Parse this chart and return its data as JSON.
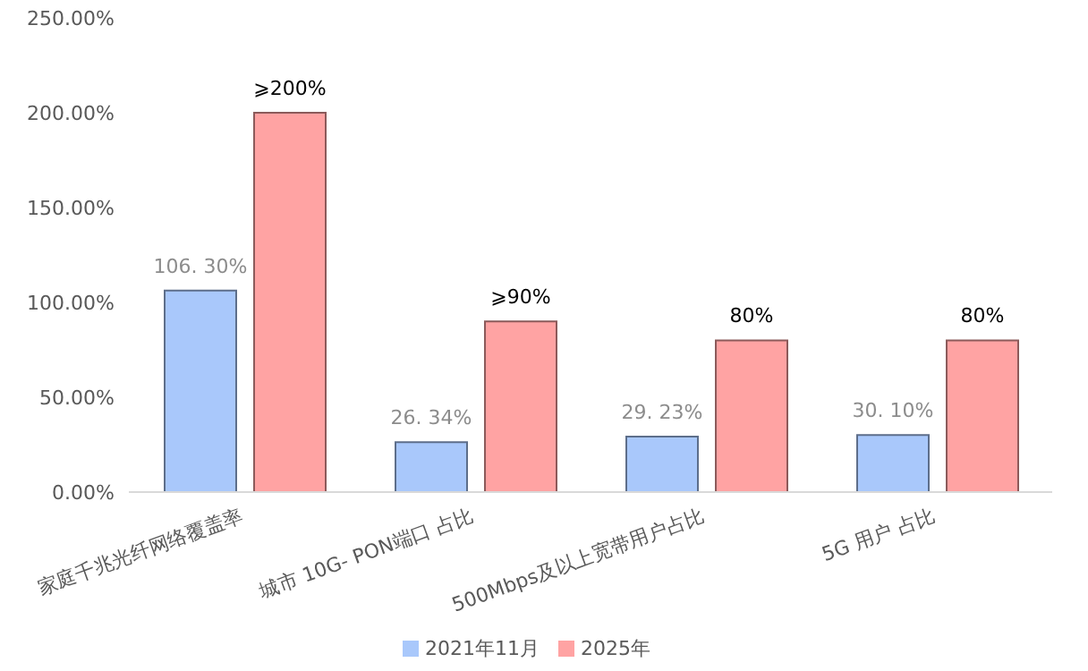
{
  "chart_data": {
    "type": "bar",
    "categories": [
      "家庭千兆光纤网络覆盖率",
      "城市 10G- PON端口 占比",
      "500Mbps及以上宽带用户占比",
      "5G 用户 占比"
    ],
    "series": [
      {
        "name": "2021年11月",
        "color": "#a9c8fb",
        "values": [
          106.3,
          26.34,
          29.23,
          30.1
        ],
        "value_labels": [
          "106. 30%",
          "26. 34%",
          "29. 23%",
          "30. 10%"
        ]
      },
      {
        "name": "2025年",
        "color": "#ffa3a3",
        "values": [
          200,
          90,
          80,
          80
        ],
        "value_labels": [
          "⩾200%",
          "⩾90%",
          "80%",
          "80%"
        ]
      }
    ],
    "ylim": [
      0,
      250
    ],
    "yticks": [
      {
        "value": 0,
        "label": "0.00%"
      },
      {
        "value": 50,
        "label": "50.00%"
      },
      {
        "value": 100,
        "label": "100.00%"
      },
      {
        "value": 150,
        "label": "150.00%"
      },
      {
        "value": 200,
        "label": "200.00%"
      },
      {
        "value": 250,
        "label": "250.00%"
      }
    ],
    "grid": false,
    "legend": "bottom"
  }
}
